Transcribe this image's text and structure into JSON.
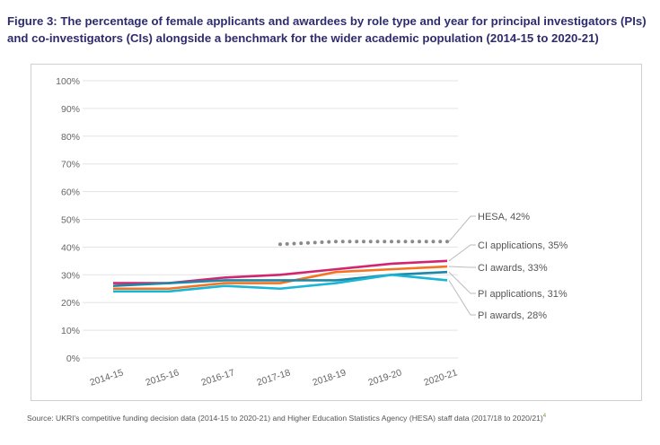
{
  "chart_data": {
    "type": "line",
    "title": "Figure 3: The percentage of female applicants and awardees by role type and year for principal investigators (PIs) and co-investigators (CIs) alongside a benchmark for the wider academic population (2014-15 to 2020-21)",
    "categories": [
      "2014-15",
      "2015-16",
      "2016-17",
      "2017-18",
      "2018-19",
      "2019-20",
      "2020-21"
    ],
    "yticks": [
      "0%",
      "10%",
      "20%",
      "30%",
      "40%",
      "50%",
      "60%",
      "70%",
      "80%",
      "90%",
      "100%"
    ],
    "ylim": [
      0,
      100
    ],
    "grid": true,
    "series": [
      {
        "name": "HESA",
        "label": "HESA, 42%",
        "color": "#8a8a8a",
        "style": "dotted",
        "values": [
          null,
          null,
          null,
          41,
          42,
          42,
          42
        ]
      },
      {
        "name": "CI applications",
        "label": "CI applications, 35%",
        "color": "#d3256f",
        "values": [
          27,
          27,
          29,
          30,
          32,
          34,
          35
        ]
      },
      {
        "name": "CI awards",
        "label": "CI awards, 33%",
        "color": "#f47422",
        "values": [
          25,
          25,
          27,
          27,
          31,
          32,
          33
        ]
      },
      {
        "name": "PI applications",
        "label": "PI applications, 31%",
        "color": "#1e87a6",
        "values": [
          26,
          27,
          28,
          28,
          28,
          30,
          31
        ]
      },
      {
        "name": "PI awards",
        "label": "PI awards, 28%",
        "color": "#19b6d6",
        "values": [
          24,
          24,
          26,
          25,
          27,
          30,
          28
        ]
      }
    ]
  },
  "source": "Source: UKRI's competitive funding decision data (2014-15 to 2020-21) and Higher Education Statistics Agency (HESA) staff data (2017/18 to 2020/21)",
  "source_sup": "4"
}
